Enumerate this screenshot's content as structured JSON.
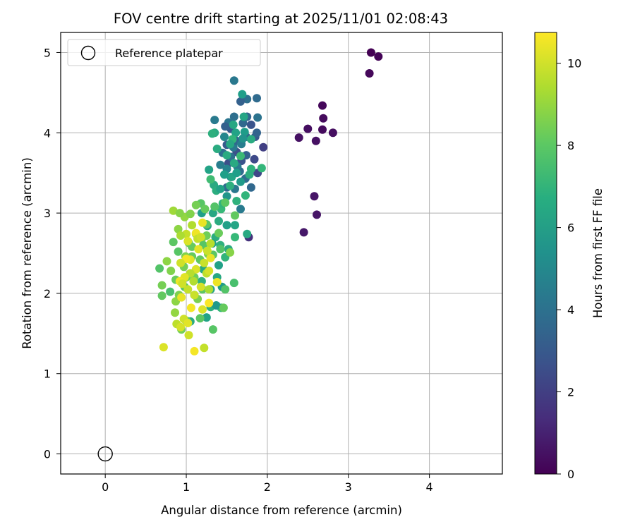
{
  "chart_data": {
    "type": "scatter",
    "title": "FOV centre drift starting at 2025/11/01 02:08:43",
    "xlabel": "Angular distance from reference (arcmin)",
    "ylabel": "Rotation from reference (arcmin)",
    "xlim": [
      -0.55,
      4.9
    ],
    "ylim": [
      -0.25,
      5.25
    ],
    "xticks": [
      0,
      1,
      2,
      3,
      4
    ],
    "yticks": [
      0,
      1,
      2,
      3,
      4,
      5
    ],
    "grid": true,
    "colormap": "viridis",
    "colorbar": {
      "label": "Hours from first FF file",
      "range": [
        0,
        10.75
      ],
      "ticks": [
        0,
        2,
        4,
        6,
        8,
        10
      ]
    },
    "legend": {
      "placement": "top-left",
      "entries": [
        {
          "label": "Reference platepar",
          "marker": "open-circle"
        }
      ]
    },
    "reference_point": {
      "x": 0,
      "y": 0,
      "label": "Reference platepar"
    },
    "colors": {
      "reference_edge": "#000000",
      "grid": "#b0b0b0"
    },
    "points": [
      [
        3.28,
        5.0,
        0.0
      ],
      [
        3.37,
        4.95,
        0.1
      ],
      [
        3.26,
        4.74,
        0.2
      ],
      [
        2.68,
        4.34,
        0.2
      ],
      [
        2.69,
        4.18,
        0.3
      ],
      [
        2.68,
        4.04,
        0.3
      ],
      [
        2.81,
        4.0,
        0.4
      ],
      [
        2.5,
        4.05,
        0.4
      ],
      [
        2.39,
        3.94,
        0.5
      ],
      [
        2.6,
        3.9,
        0.5
      ],
      [
        2.58,
        3.21,
        0.6
      ],
      [
        2.61,
        2.98,
        0.6
      ],
      [
        2.45,
        2.76,
        0.7
      ],
      [
        1.77,
        2.7,
        1.5
      ],
      [
        1.95,
        3.82,
        2.0
      ],
      [
        1.88,
        3.5,
        2.3
      ],
      [
        1.52,
        3.62,
        2.6
      ],
      [
        1.62,
        3.76,
        2.7
      ],
      [
        1.85,
        3.95,
        2.9
      ],
      [
        1.55,
        4.05,
        3.0
      ],
      [
        1.68,
        3.65,
        2.8
      ],
      [
        1.84,
        3.67,
        2.4
      ],
      [
        1.74,
        3.95,
        3.2
      ],
      [
        1.5,
        3.85,
        3.1
      ],
      [
        1.59,
        4.65,
        4.3
      ],
      [
        1.75,
        4.42,
        3.9
      ],
      [
        1.87,
        4.43,
        3.7
      ],
      [
        1.67,
        4.39,
        3.3
      ],
      [
        1.75,
        4.2,
        3.5
      ],
      [
        1.59,
        4.2,
        3.9
      ],
      [
        1.52,
        4.13,
        4.2
      ],
      [
        1.7,
        4.12,
        3.6
      ],
      [
        1.48,
        4.08,
        3.3
      ],
      [
        1.35,
        4.16,
        4.4
      ],
      [
        1.87,
        4.0,
        3.4
      ],
      [
        1.8,
        4.1,
        2.8
      ],
      [
        1.88,
        4.19,
        4.1
      ],
      [
        1.8,
        3.32,
        3.6
      ],
      [
        1.66,
        3.52,
        3.8
      ],
      [
        1.63,
        3.58,
        4.5
      ],
      [
        1.55,
        3.7,
        4.0
      ],
      [
        1.45,
        3.75,
        3.9
      ],
      [
        1.5,
        3.32,
        3.7
      ],
      [
        1.73,
        3.43,
        3.8
      ],
      [
        1.67,
        3.05,
        4.4
      ],
      [
        1.5,
        3.55,
        4.8
      ],
      [
        1.58,
        3.82,
        4.4
      ],
      [
        1.62,
        3.9,
        3.6
      ],
      [
        1.68,
        3.86,
        4.6
      ],
      [
        1.74,
        3.72,
        3.4
      ],
      [
        1.47,
        3.95,
        5.0
      ],
      [
        1.55,
        3.45,
        4.9
      ],
      [
        1.6,
        3.3,
        4.3
      ],
      [
        1.42,
        3.6,
        4.6
      ],
      [
        1.69,
        4.48,
        6.0
      ],
      [
        1.71,
        4.2,
        6.3
      ],
      [
        1.58,
        4.1,
        6.4
      ],
      [
        1.35,
        4.0,
        6.5
      ],
      [
        1.38,
        3.8,
        6.6
      ],
      [
        1.32,
        3.99,
        6.8
      ],
      [
        1.61,
        4.0,
        6.2
      ],
      [
        1.72,
        4.01,
        5.9
      ],
      [
        1.8,
        3.92,
        6.6
      ],
      [
        1.8,
        3.55,
        6.9
      ],
      [
        1.93,
        3.56,
        7.1
      ],
      [
        1.78,
        3.48,
        6.7
      ],
      [
        1.57,
        3.92,
        7.0
      ],
      [
        1.54,
        3.86,
        6.4
      ],
      [
        1.67,
        3.71,
        7.3
      ],
      [
        1.56,
        3.45,
        6.3
      ],
      [
        1.34,
        3.35,
        6.5
      ],
      [
        1.37,
        3.28,
        6.7
      ],
      [
        1.28,
        3.54,
        6.2
      ],
      [
        1.54,
        3.34,
        6.8
      ],
      [
        1.67,
        3.39,
        5.8
      ],
      [
        1.73,
        3.22,
        7.0
      ],
      [
        1.5,
        3.21,
        5.6
      ],
      [
        1.47,
        3.48,
        6.0
      ],
      [
        1.42,
        3.3,
        6.1
      ],
      [
        1.62,
        3.15,
        6.9
      ],
      [
        1.43,
        3.05,
        7.2
      ],
      [
        1.59,
        3.62,
        6.5
      ],
      [
        1.3,
        3.42,
        7.4
      ],
      [
        1.5,
        3.72,
        6.6
      ],
      [
        1.7,
        3.93,
        5.5
      ],
      [
        1.62,
        3.5,
        6.0
      ],
      [
        1.45,
        3.12,
        7.0
      ],
      [
        1.75,
        2.74,
        6.5
      ],
      [
        1.6,
        2.85,
        6.3
      ],
      [
        1.5,
        2.85,
        6.1
      ],
      [
        1.4,
        2.9,
        6.6
      ],
      [
        1.33,
        3.0,
        6.4
      ],
      [
        1.19,
        3.0,
        6.0
      ],
      [
        1.26,
        2.84,
        6.2
      ],
      [
        1.36,
        2.7,
        6.7
      ],
      [
        1.6,
        2.7,
        7.2
      ],
      [
        1.52,
        2.55,
        6.6
      ],
      [
        1.42,
        2.6,
        6.9
      ],
      [
        1.48,
        2.45,
        7.0
      ],
      [
        1.4,
        2.35,
        6.1
      ],
      [
        1.38,
        2.2,
        6.4
      ],
      [
        1.21,
        2.3,
        6.5
      ],
      [
        1.19,
        2.15,
        6.9
      ],
      [
        1.3,
        1.83,
        6.8
      ],
      [
        1.43,
        1.82,
        7.1
      ],
      [
        1.37,
        1.85,
        5.8
      ],
      [
        1.25,
        1.7,
        6.2
      ],
      [
        1.1,
        1.98,
        6.0
      ],
      [
        1.05,
        1.65,
        6.6
      ],
      [
        1.3,
        2.05,
        6.3
      ],
      [
        1.44,
        2.08,
        5.9
      ],
      [
        1.32,
        2.62,
        6.0
      ],
      [
        1.59,
        2.13,
        7.6
      ],
      [
        1.48,
        2.05,
        7.8
      ],
      [
        1.46,
        1.82,
        8.2
      ],
      [
        1.33,
        1.55,
        7.9
      ],
      [
        1.17,
        1.69,
        8.0
      ],
      [
        1.18,
        3.12,
        7.9
      ],
      [
        1.12,
        3.1,
        8.5
      ],
      [
        1.23,
        3.05,
        8.2
      ],
      [
        1.35,
        3.08,
        7.8
      ],
      [
        1.48,
        3.13,
        8.0
      ],
      [
        1.6,
        2.97,
        8.1
      ],
      [
        1.42,
        2.55,
        7.8
      ],
      [
        1.54,
        2.51,
        8.8
      ],
      [
        1.27,
        2.49,
        8.6
      ],
      [
        1.25,
        2.72,
        8.4
      ],
      [
        1.25,
        2.86,
        8.0
      ],
      [
        1.4,
        2.75,
        8.3
      ],
      [
        1.19,
        2.68,
        8.6
      ],
      [
        1.12,
        2.74,
        8.9
      ],
      [
        1.03,
        2.63,
        8.4
      ],
      [
        1.07,
        2.46,
        8.2
      ],
      [
        0.99,
        2.46,
        8.7
      ],
      [
        0.9,
        2.52,
        7.9
      ],
      [
        0.84,
        2.64,
        8.0
      ],
      [
        0.81,
        2.28,
        8.7
      ],
      [
        0.87,
        2.17,
        8.3
      ],
      [
        0.91,
        1.98,
        8.6
      ],
      [
        0.87,
        1.9,
        8.9
      ],
      [
        0.8,
        2.02,
        7.6
      ],
      [
        0.7,
        1.97,
        8.1
      ],
      [
        0.7,
        2.1,
        8.5
      ],
      [
        0.67,
        2.31,
        7.8
      ],
      [
        0.76,
        2.4,
        8.9
      ],
      [
        0.97,
        2.33,
        8.5
      ],
      [
        1.0,
        2.2,
        8.3
      ],
      [
        1.17,
        2.42,
        8.1
      ],
      [
        1.2,
        2.05,
        8.0
      ],
      [
        1.1,
        2.2,
        8.4
      ],
      [
        1.21,
        2.6,
        7.9
      ],
      [
        1.07,
        2.58,
        8.2
      ],
      [
        0.98,
        2.08,
        7.8
      ],
      [
        1.33,
        2.48,
        8.0
      ],
      [
        1.14,
        1.93,
        8.6
      ],
      [
        1.0,
        1.66,
        8.0
      ],
      [
        0.94,
        1.55,
        8.5
      ],
      [
        0.86,
        1.76,
        9.0
      ],
      [
        0.9,
        2.8,
        8.9
      ],
      [
        0.98,
        2.95,
        9.0
      ],
      [
        1.05,
        2.99,
        8.7
      ],
      [
        0.84,
        3.03,
        9.2
      ],
      [
        0.92,
        3.0,
        8.8
      ],
      [
        1.07,
        2.85,
        9.5
      ],
      [
        1.0,
        2.74,
        9.8
      ],
      [
        0.93,
        2.72,
        9.4
      ],
      [
        1.12,
        2.75,
        10.5
      ],
      [
        1.02,
        2.65,
        10.2
      ],
      [
        1.14,
        2.68,
        9.8
      ],
      [
        1.2,
        2.88,
        10.4
      ],
      [
        1.3,
        2.62,
        9.6
      ],
      [
        1.22,
        2.38,
        9.9
      ],
      [
        1.05,
        2.42,
        10.3
      ],
      [
        1.0,
        2.43,
        10.6
      ],
      [
        0.93,
        2.38,
        10.0
      ],
      [
        1.3,
        2.44,
        10.4
      ],
      [
        1.25,
        2.25,
        9.7
      ],
      [
        1.28,
        2.28,
        10.1
      ],
      [
        1.12,
        2.3,
        10.2
      ],
      [
        1.05,
        2.25,
        9.6
      ],
      [
        0.98,
        2.2,
        10.3
      ],
      [
        0.92,
        2.15,
        10.5
      ],
      [
        1.02,
        2.05,
        9.8
      ],
      [
        0.95,
        2.12,
        10.0
      ],
      [
        0.94,
        1.95,
        10.4
      ],
      [
        1.1,
        1.98,
        9.9
      ],
      [
        1.06,
        1.82,
        10.6
      ],
      [
        1.2,
        1.8,
        10.2
      ],
      [
        1.28,
        1.88,
        10.7
      ],
      [
        1.28,
        2.05,
        9.4
      ],
      [
        1.38,
        2.14,
        10.5
      ],
      [
        1.18,
        2.08,
        10.1
      ],
      [
        1.09,
        2.15,
        9.5
      ],
      [
        0.97,
        1.68,
        10.0
      ],
      [
        1.02,
        1.63,
        10.3
      ],
      [
        0.88,
        1.62,
        9.7
      ],
      [
        0.93,
        1.58,
        10.1
      ],
      [
        1.03,
        1.48,
        10.0
      ],
      [
        0.72,
        1.33,
        10.2
      ],
      [
        1.1,
        1.28,
        10.6
      ],
      [
        1.22,
        1.32,
        9.8
      ],
      [
        1.18,
        2.7,
        10.0
      ],
      [
        1.26,
        2.53,
        9.9
      ],
      [
        1.15,
        2.55,
        10.3
      ]
    ]
  }
}
